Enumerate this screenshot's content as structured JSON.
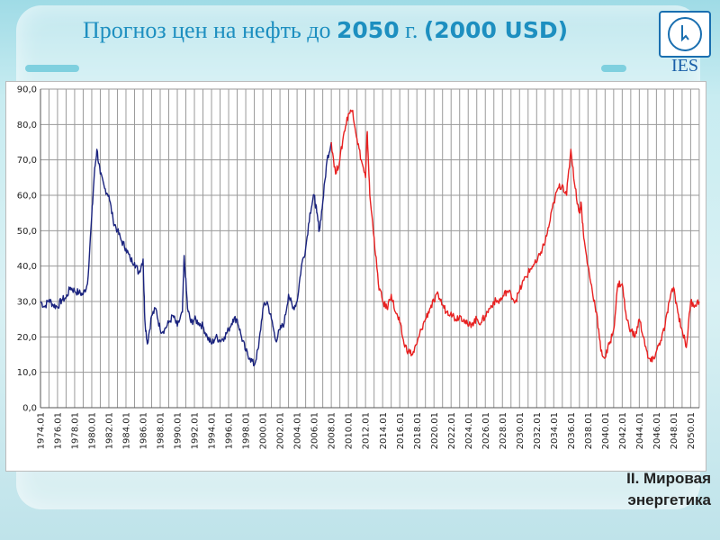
{
  "slide": {
    "title_part1": "Прогноз цен на нефть до ",
    "title_year": "2050",
    "title_part2": " г. ",
    "title_part3": "(2000 USD)",
    "logo_text": "IES",
    "caption_line1": "II. Мировая",
    "caption_line2": "энергетика",
    "colors": {
      "title": "#1d8fc0",
      "historical": "#1a237e",
      "forecast": "#e82020"
    }
  },
  "chart_data": {
    "type": "line",
    "title": "",
    "xlabel": "",
    "ylabel": "",
    "ylim": [
      0,
      90
    ],
    "xlim": [
      "1974.01",
      "2051.01"
    ],
    "grid": true,
    "legend": "none",
    "y_ticks": [
      "0,0",
      "10,0",
      "20,0",
      "30,0",
      "40,0",
      "50,0",
      "60,0",
      "70,0",
      "80,0",
      "90,0"
    ],
    "x_ticks": [
      "1974.01",
      "1976.01",
      "1978.01",
      "1980.01",
      "1982.01",
      "1984.01",
      "1986.01",
      "1988.01",
      "1990.01",
      "1992.01",
      "1994.01",
      "1996.01",
      "1998.01",
      "2000.01",
      "2002.01",
      "2004.01",
      "2006.01",
      "2008.01",
      "2010.01",
      "2012.01",
      "2014.01",
      "2016.01",
      "2018.01",
      "2020.01",
      "2022.01",
      "2024.01",
      "2026.01",
      "2028.01",
      "2030.01",
      "2032.01",
      "2034.01",
      "2036.01",
      "2038.01",
      "2040.01",
      "2042.01",
      "2044.01",
      "2046.01",
      "2048.01",
      "2050.01"
    ],
    "series": [
      {
        "color": "#1a237e",
        "x": [
          1974.0,
          1974.5,
          1975.0,
          1975.5,
          1976.0,
          1976.5,
          1977.0,
          1977.5,
          1978.0,
          1978.5,
          1979.0,
          1979.5,
          1980.0,
          1980.3,
          1980.6,
          1981.0,
          1981.5,
          1982.0,
          1982.5,
          1983.0,
          1983.5,
          1984.0,
          1984.5,
          1985.0,
          1985.5,
          1986.0,
          1986.2,
          1986.5,
          1987.0,
          1987.5,
          1988.0,
          1988.5,
          1989.0,
          1989.5,
          1990.0,
          1990.6,
          1990.8,
          1991.2,
          1991.6,
          1992.0,
          1992.5,
          1993.0,
          1993.5,
          1994.0,
          1994.5,
          1995.0,
          1995.5,
          1996.0,
          1996.5,
          1997.0,
          1997.5,
          1998.0,
          1998.5,
          1999.0,
          1999.5,
          2000.0,
          2000.5,
          2001.0,
          2001.5,
          2002.0,
          2002.5,
          2003.0,
          2003.5,
          2004.0,
          2004.5,
          2005.0,
          2005.5,
          2006.0,
          2006.3,
          2006.6,
          2007.0,
          2007.5,
          2008.0
        ],
        "y": [
          30,
          28.5,
          30.5,
          29,
          28.5,
          30.5,
          31,
          34,
          33,
          32.5,
          32,
          35,
          54,
          66,
          73,
          66,
          62,
          60,
          53,
          50,
          47,
          45,
          42,
          41,
          38,
          42,
          25,
          18,
          26,
          28,
          22,
          22,
          24,
          26,
          23,
          27,
          43,
          28,
          24,
          25,
          24,
          23,
          20,
          18,
          20,
          19,
          20,
          22,
          25,
          25,
          20,
          16,
          14,
          12,
          17,
          28,
          30,
          25,
          19,
          22,
          24,
          32,
          28,
          30,
          40,
          45,
          55,
          60,
          55,
          50,
          58,
          70,
          75
        ]
      },
      {
        "color": "#e82020",
        "x": [
          2008.0,
          2008.5,
          2009.0,
          2009.5,
          2010.0,
          2010.5,
          2011.0,
          2011.5,
          2012.0,
          2012.2,
          2012.5,
          2013.0,
          2013.5,
          2014.0,
          2014.5,
          2015.0,
          2015.5,
          2016.0,
          2016.5,
          2017.0,
          2017.5,
          2018.0,
          2018.5,
          2019.0,
          2019.5,
          2020.0,
          2020.5,
          2021.0,
          2021.5,
          2022.0,
          2022.5,
          2023.0,
          2023.5,
          2024.0,
          2024.5,
          2025.0,
          2025.5,
          2026.0,
          2026.5,
          2027.0,
          2027.5,
          2028.0,
          2028.5,
          2029.0,
          2029.5,
          2030.0,
          2030.5,
          2031.0,
          2031.5,
          2032.0,
          2032.5,
          2033.0,
          2033.5,
          2034.0,
          2034.5,
          2035.0,
          2035.5,
          2036.0,
          2036.5,
          2037.0,
          2037.2,
          2037.5,
          2038.0,
          2038.5,
          2039.0,
          2039.5,
          2040.0,
          2040.5,
          2041.0,
          2041.5,
          2042.0,
          2042.5,
          2043.0,
          2043.5,
          2044.0,
          2044.5,
          2045.0,
          2045.5,
          2046.0,
          2046.5,
          2047.0,
          2047.5,
          2048.0,
          2048.5,
          2049.0,
          2049.5,
          2050.0,
          2050.5,
          2051.0
        ],
        "y": [
          75,
          66,
          70,
          78,
          83,
          84,
          76,
          70,
          65,
          78,
          60,
          48,
          35,
          30,
          28,
          32,
          27,
          24,
          18,
          16,
          15,
          18,
          22,
          25,
          28,
          30,
          32,
          29,
          27,
          27,
          25,
          26,
          25,
          23,
          24,
          25,
          24,
          26,
          28,
          30,
          30,
          31,
          33,
          32,
          30,
          33,
          36,
          38,
          40,
          41,
          44,
          47,
          52,
          58,
          62,
          63,
          60,
          73,
          62,
          55,
          58,
          48,
          40,
          33,
          27,
          16,
          14,
          18,
          22,
          35,
          35,
          25,
          22,
          20,
          25,
          20,
          14,
          13,
          16,
          19,
          23,
          30,
          34,
          27,
          22,
          17,
          30,
          29,
          30
        ]
      }
    ]
  }
}
